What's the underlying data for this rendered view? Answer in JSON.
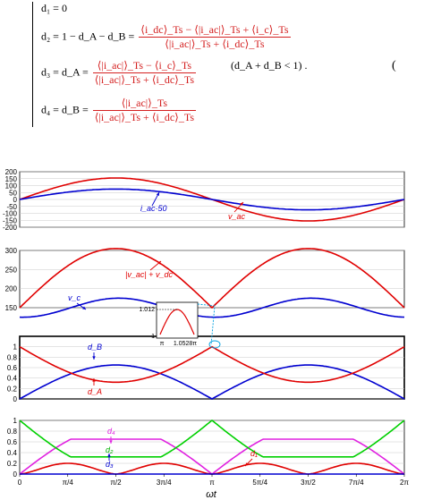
{
  "equations": {
    "d1": "d₁ = 0",
    "d2_lhs": "d₂ = 1 − d_A − d_B =",
    "d2_num": "⟨i_dc⟩_Ts − ⟨|i_ac|⟩_Ts + ⟨i_c⟩_Ts",
    "d2_den": "⟨|i_ac|⟩_Ts + ⟨i_dc⟩_Ts",
    "d3_lhs": "d₃ = d_A =",
    "d3_num": "⟨|i_ac|⟩_Ts − ⟨i_c⟩_Ts",
    "d3_den": "⟨|i_ac|⟩_Ts + ⟨i_dc⟩_Ts",
    "d4_lhs": "d₄ = d_B =",
    "d4_num": "⟨|i_ac|⟩_Ts",
    "d4_den": "⟨|i_ac|⟩_Ts + ⟨i_dc⟩_Ts",
    "condition": "(d_A + d_B < 1) .",
    "paren": "("
  },
  "chart_data": [
    {
      "type": "line",
      "panel": 1,
      "ylim": [
        -200,
        200
      ],
      "yticks": [
        -200,
        -150,
        -100,
        -50,
        0,
        50,
        100,
        150,
        200
      ],
      "series": [
        {
          "name": "v_ac",
          "color": "#e00000",
          "amplitude": 155,
          "shape": "sin"
        },
        {
          "name": "i_ac·50",
          "color": "#0000d0",
          "amplitude": 75,
          "shape": "sin"
        }
      ],
      "annotations": [
        "i_ac·50",
        "v_ac"
      ]
    },
    {
      "type": "line",
      "panel": 2,
      "ylim": [
        150,
        300
      ],
      "yticks": [
        150,
        200,
        250,
        300
      ],
      "series": [
        {
          "name": "|v_ac| + v_dc",
          "color": "#e00000",
          "base": 150,
          "amplitude": 155,
          "shape": "abs-sin"
        },
        {
          "name": "v_c",
          "color": "#0000d0",
          "mean": 150,
          "amplitude": 25,
          "shape": "sin2"
        }
      ],
      "annotations": [
        "|v_ac| + v_dc",
        "v_c"
      ],
      "inset": {
        "ylabel_top": "1.012",
        "ylabel_bottom": "1",
        "xlabels": [
          "π",
          "1.0528π"
        ]
      }
    },
    {
      "type": "line",
      "panel": 3,
      "ylim": [
        0,
        1.2
      ],
      "yticks": [
        0,
        0.2,
        0.4,
        0.6,
        0.8,
        1
      ],
      "series": [
        {
          "name": "d_B",
          "color": "#0000d0",
          "peak": 0.65
        },
        {
          "name": "d_A",
          "color": "#e00000",
          "max": 1.0,
          "min": 0.32
        }
      ],
      "annotations": [
        "d_B",
        "d_A"
      ]
    },
    {
      "type": "line",
      "panel": 4,
      "ylim": [
        0,
        1
      ],
      "yticks": [
        0,
        0.2,
        0.4,
        0.6,
        0.8,
        1
      ],
      "xlim": [
        0,
        6.2832
      ],
      "xticks": [
        "0",
        "π/4",
        "π/2",
        "3π/4",
        "π",
        "5π/4",
        "3π/2",
        "7π/4",
        "2π"
      ],
      "xlabel": "ωt",
      "series": [
        {
          "name": "d_4",
          "color": "#e020e0",
          "peak": 0.65
        },
        {
          "name": "d_2",
          "color": "#00d000",
          "max": 1.0,
          "min": 0.32
        },
        {
          "name": "d_3",
          "color": "#e00000",
          "peak": 0.2
        },
        {
          "name": "d_1",
          "color": "#0000d0",
          "value": 0
        }
      ],
      "annotations": [
        "d₄",
        "d₂",
        "d₃",
        "d₁"
      ]
    }
  ]
}
